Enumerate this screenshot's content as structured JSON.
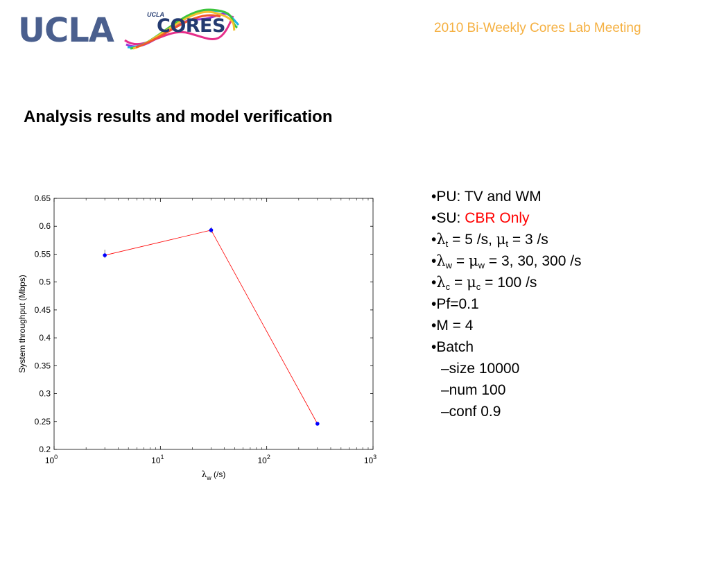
{
  "header": {
    "ucla_logo_text": "UCLA",
    "cores_logo_small": "UCLA",
    "cores_logo_text": "CORES",
    "meeting_title": "2010 Bi-Weekly Cores Lab Meeting",
    "colors": {
      "ucla_blue": "#4a5f8e",
      "meeting_orange": "#f5b041"
    }
  },
  "slide_title": "Analysis results and model verification",
  "chart_data": {
    "type": "scatter",
    "title": "",
    "xlabel_symbol": "λ",
    "xlabel_sub": "w",
    "xlabel_unit": " (/s)",
    "ylabel": "System throughput (Mbps)",
    "xscale": "log",
    "xlim": [
      1,
      1000
    ],
    "ylim": [
      0.2,
      0.65
    ],
    "x_ticks": [
      {
        "base": "10",
        "exp": "0",
        "value": 1
      },
      {
        "base": "10",
        "exp": "1",
        "value": 10
      },
      {
        "base": "10",
        "exp": "2",
        "value": 100
      },
      {
        "base": "10",
        "exp": "3",
        "value": 1000
      }
    ],
    "y_ticks": [
      "0.2",
      "0.25",
      "0.3",
      "0.35",
      "0.4",
      "0.45",
      "0.5",
      "0.55",
      "0.6",
      "0.65"
    ],
    "series": [
      {
        "x": [
          3,
          30,
          300
        ],
        "y": [
          0.548,
          0.593,
          0.246
        ],
        "err_low": [
          0.543,
          0.588,
          0.244
        ],
        "err_high": [
          0.558,
          0.599,
          0.249
        ],
        "marker_color": "#0000ff",
        "line_color": "#ff0000"
      }
    ],
    "grid": false,
    "legend": "none"
  },
  "bullets": {
    "pu": {
      "prefix": "•PU: ",
      "text": "TV and WM"
    },
    "su": {
      "prefix": "•SU: ",
      "highlight": "CBR Only",
      "highlight_color": "#ff0000"
    },
    "lambda_t": {
      "bullet": "•",
      "sym1": "λ",
      "sub1": "t",
      "mid": " = 5 /s,  ",
      "sym2": "μ",
      "sub2": "t",
      "rest": " = 3 /s"
    },
    "lambda_w": {
      "bullet": "•",
      "sym1": "λ",
      "sub1": "w",
      "mid": " = ",
      "sym2": "μ",
      "sub2": "w",
      "rest": " = 3, 30, 300 /s"
    },
    "lambda_c": {
      "bullet": "•",
      "sym1": "λ",
      "sub1": "c",
      "mid": " = ",
      "sym2": "μ",
      "sub2": "c",
      "rest": " = 100 /s"
    },
    "pf": "•Pf=0.1",
    "m": "•M = 4",
    "batch": "•Batch",
    "size": "–size 10000",
    "num": "–num 100",
    "conf": "–conf 0.9"
  }
}
